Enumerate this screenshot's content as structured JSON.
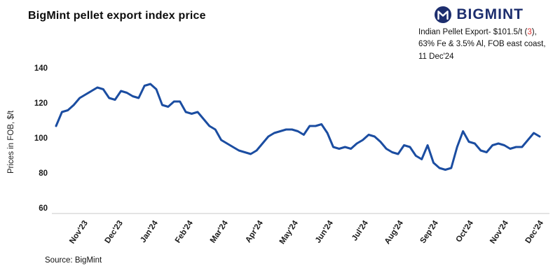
{
  "header": {
    "title": "BigMint pellet export index price",
    "logo_text": "BIGMINT"
  },
  "annotation": {
    "line1_prefix": "Indian Pellet Export- $101.5/t (",
    "line1_highlight": "3",
    "line1_suffix": "),",
    "line2": "63% Fe & 3.5% Al, FOB east coast,",
    "line3": "11 Dec'24"
  },
  "footer": {
    "source": "Source: BigMint"
  },
  "colors": {
    "line": "#1b4da1",
    "accent_red": "#e03131",
    "logo_navy": "#1d2e6e",
    "axis_line": "#c9c9c9"
  },
  "chart_data": {
    "type": "line",
    "title": "BigMint pellet export index price",
    "xlabel": "",
    "ylabel": "Prices in FOB, $/t",
    "ylim": [
      60,
      140
    ],
    "yticks": [
      60,
      80,
      100,
      120,
      140
    ],
    "x_tick_labels": [
      "Nov'23",
      "Dec'23",
      "Jan'24",
      "Feb'24",
      "Mar'24",
      "Apr'24",
      "May'24",
      "Jun'24",
      "Jul'24",
      "Aug'24",
      "Sep'24",
      "Oct'24",
      "Nov'24",
      "Dec'24"
    ],
    "grid": false,
    "legend": "none",
    "series": [
      {
        "name": "Indian Pellet Export, FOB east coast",
        "color": "#1b4da1",
        "values": [
          108,
          116,
          117,
          120,
          124,
          126,
          128,
          130,
          129,
          124,
          123,
          128,
          127,
          125,
          124,
          131,
          132,
          129,
          120,
          119,
          122,
          122,
          116,
          115,
          116,
          112,
          108,
          106,
          100,
          98,
          96,
          94,
          93,
          92,
          94,
          98,
          102,
          104,
          105,
          106,
          106,
          105,
          103,
          108,
          108,
          109,
          104,
          96,
          95,
          96,
          95,
          98,
          100,
          103,
          102,
          99,
          95,
          93,
          92,
          97,
          96,
          91,
          89,
          97,
          87,
          84,
          83,
          84,
          96,
          105,
          99,
          98,
          94,
          93,
          97,
          98,
          97,
          95,
          96,
          96,
          100,
          104,
          102
        ]
      }
    ],
    "latest_point": {
      "date": "11 Dec'24",
      "value": 101.5,
      "change": 3
    }
  }
}
